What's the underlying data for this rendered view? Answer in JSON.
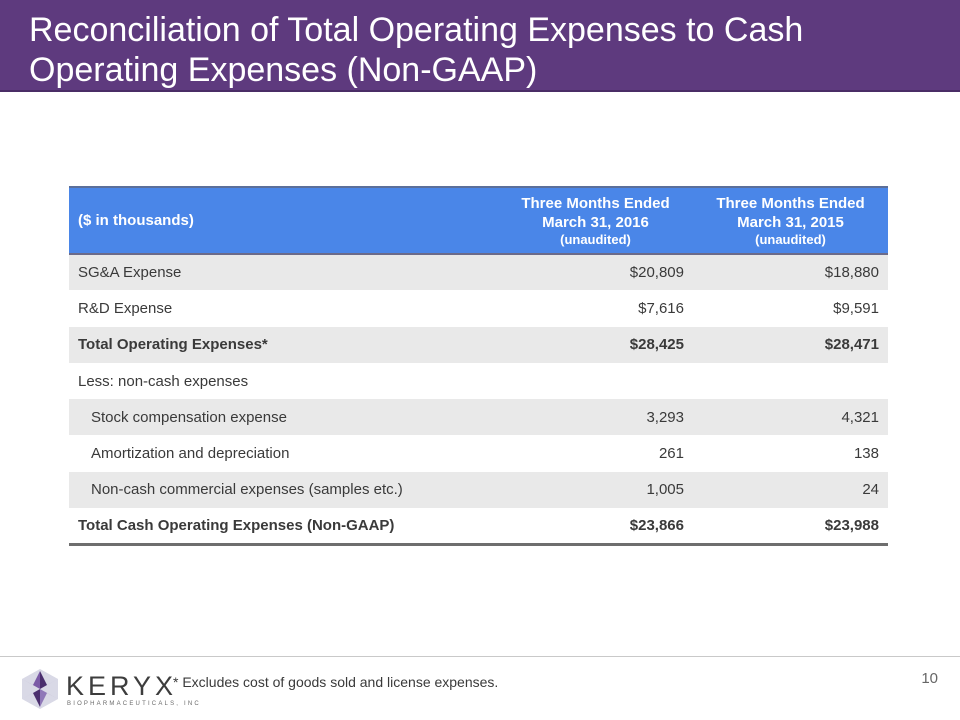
{
  "slide": {
    "title": "Reconciliation of Total Operating Expenses to Cash Operating Expenses (Non-GAAP)",
    "footnote": "* Excludes cost of goods sold and license expenses.",
    "page_number": "10"
  },
  "logo": {
    "name": "KERYX",
    "subtitle": "BIOPHARMACEUTICALS, INC"
  },
  "table": {
    "header": {
      "label": "($ in thousands)",
      "col1_line1": "Three Months Ended",
      "col1_line2": "March 31, 2016",
      "col1_sub": "(unaudited)",
      "col2_line1": "Three Months Ended",
      "col2_line2": "March 31, 2015",
      "col2_sub": "(unaudited)"
    },
    "rows": [
      {
        "label": "SG&A Expense",
        "v2016": "$20,809",
        "v2015": "$18,880"
      },
      {
        "label": "R&D Expense",
        "v2016": "$7,616",
        "v2015": "$9,591"
      },
      {
        "label": "Total Operating Expenses*",
        "v2016": "$28,425",
        "v2015": "$28,471"
      },
      {
        "label": "Less: non-cash expenses",
        "v2016": "",
        "v2015": ""
      },
      {
        "label": "Stock compensation expense",
        "v2016": "3,293",
        "v2015": "4,321"
      },
      {
        "label": "Amortization and depreciation",
        "v2016": "261",
        "v2015": "138"
      },
      {
        "label": "Non-cash commercial expenses (samples etc.)",
        "v2016": "1,005",
        "v2015": "24"
      },
      {
        "label": "Total Cash Operating Expenses (Non-GAAP)",
        "v2016": "$23,866",
        "v2015": "$23,988"
      }
    ]
  },
  "colors": {
    "title_bar": "#5e3a7e",
    "table_header": "#4a86e8",
    "row_shade": "#e9e9e9"
  }
}
